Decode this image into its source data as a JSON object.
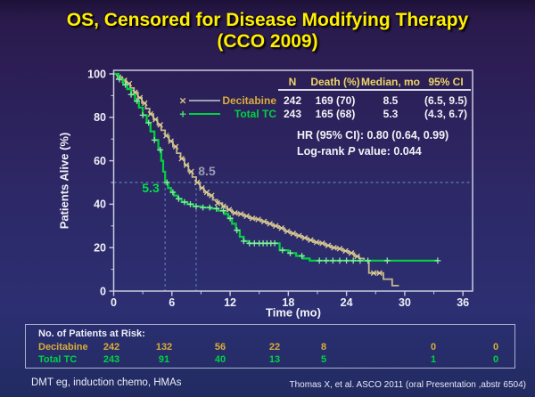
{
  "slide": {
    "title_line1": "OS, Censored for Disease Modifying Therapy",
    "title_line2": "(CCO 2009)",
    "footer_left": "DMT eg, induction chemo, HMAs",
    "footer_right": "Thomas X, et al. ASCO 2011 (oral Presentation ,abstr 6504)"
  },
  "axes": {
    "xlabel": "Time (mo)",
    "ylabel": "Patients Alive (%)"
  },
  "legend": {
    "decitabine_marker": "×",
    "total_tc_marker": "+",
    "decitabine_line_color": "#9aa2b2",
    "total_tc_line_color": "#00d23e"
  },
  "stats_panel": {
    "headers": {
      "n": "N",
      "death": "Death (%)",
      "median": "Median, mo",
      "ci": "95% CI"
    },
    "rows": [
      {
        "name": "Decitabine",
        "n": "242",
        "death": "169 (70)",
        "median": "8.5",
        "ci": "(6.5, 9.5)",
        "color": "#d9ad3a"
      },
      {
        "name": "Total TC",
        "n": "243",
        "death": "165 (68)",
        "median": "5.3",
        "ci": "(4.3, 6.7)",
        "color": "#00d244"
      }
    ],
    "hr_text": "HR (95% CI): 0.80 (0.64, 0.99)",
    "logrank_prefix": "Log-rank ",
    "logrank_italic": "P",
    "logrank_suffix": " value: 0.044"
  },
  "annotations": {
    "median_total_tc": "5.3",
    "median_decitabine": "8.5"
  },
  "risk_table": {
    "title": "No. of Patients at Risk:",
    "rows": [
      {
        "name": "Decitabine",
        "values": [
          "242",
          "132",
          "56",
          "22",
          "8",
          "0",
          "0"
        ]
      },
      {
        "name": "Total TC",
        "values": [
          "243",
          "91",
          "40",
          "13",
          "5",
          "1",
          "0"
        ]
      }
    ]
  },
  "chart_data": {
    "type": "line",
    "subtype": "kaplan-meier-step",
    "title": "OS, Censored for Disease Modifying Therapy (CCO 2009)",
    "xlabel": "Time (mo)",
    "ylabel": "Patients Alive (%)",
    "xlim": [
      0,
      36
    ],
    "ylim": [
      0,
      100
    ],
    "x_ticks": [
      0,
      6,
      12,
      18,
      24,
      30,
      36
    ],
    "x_minor_ticks": [
      3,
      9,
      15,
      21,
      27,
      33
    ],
    "y_ticks": [
      0,
      20,
      40,
      60,
      80,
      100
    ],
    "y_minor_ticks": [
      10,
      30,
      50,
      70,
      90
    ],
    "reference_line_percent": 50,
    "medians": {
      "Decitabine": 8.5,
      "Total TC": 5.3
    },
    "axis_color": "#c9cde0",
    "guide_color": "#6f93c8",
    "tick_label_color": "#f0f0f8",
    "series": [
      {
        "name": "Decitabine",
        "line_color": "#c3b98d",
        "marker": "x",
        "marker_color": "#ddcd92",
        "steps": [
          [
            0,
            100
          ],
          [
            0.4,
            98.5
          ],
          [
            0.9,
            97
          ],
          [
            1.3,
            95.5
          ],
          [
            1.7,
            93.5
          ],
          [
            2.1,
            91.5
          ],
          [
            2.5,
            89
          ],
          [
            2.9,
            86.5
          ],
          [
            3.3,
            84
          ],
          [
            3.7,
            81.5
          ],
          [
            4.1,
            79
          ],
          [
            4.5,
            76.5
          ],
          [
            4.9,
            74
          ],
          [
            5.3,
            71.5
          ],
          [
            5.7,
            69
          ],
          [
            6.1,
            66.5
          ],
          [
            6.5,
            63.5
          ],
          [
            6.9,
            61
          ],
          [
            7.3,
            58
          ],
          [
            7.7,
            55
          ],
          [
            8.1,
            52.5
          ],
          [
            8.5,
            50
          ],
          [
            8.9,
            47.5
          ],
          [
            9.3,
            45.5
          ],
          [
            9.7,
            44
          ],
          [
            10.2,
            42
          ],
          [
            10.7,
            40.5
          ],
          [
            11.2,
            39
          ],
          [
            11.7,
            37.5
          ],
          [
            12.2,
            36
          ],
          [
            12.8,
            35.5
          ],
          [
            13.4,
            34.5
          ],
          [
            14,
            33.5
          ],
          [
            14.6,
            33
          ],
          [
            15.2,
            32
          ],
          [
            15.8,
            31
          ],
          [
            16.4,
            30
          ],
          [
            17,
            29
          ],
          [
            17.6,
            27.5
          ],
          [
            18.2,
            26.5
          ],
          [
            18.8,
            25.5
          ],
          [
            19.4,
            24.5
          ],
          [
            20,
            23.5
          ],
          [
            20.6,
            22.5
          ],
          [
            21.2,
            22
          ],
          [
            21.8,
            21
          ],
          [
            22.4,
            20
          ],
          [
            23,
            19.5
          ],
          [
            23.6,
            18.5
          ],
          [
            24.2,
            17.5
          ],
          [
            24.8,
            16
          ],
          [
            25.3,
            15
          ],
          [
            25.8,
            14
          ],
          [
            26.3,
            8.3
          ],
          [
            27.8,
            5.5
          ],
          [
            28.7,
            2.5
          ],
          [
            29.4,
            2.5
          ]
        ],
        "censor_times": [
          0.5,
          1.1,
          1.6,
          2.2,
          2.7,
          3.2,
          3.8,
          4.3,
          4.8,
          5.4,
          5.9,
          6.4,
          7.0,
          7.5,
          8.0,
          8.6,
          9.1,
          9.6,
          10.1,
          10.7,
          11.3,
          11.9,
          12.5,
          13.1,
          13.7,
          14.3,
          14.9,
          15.5,
          16.1,
          16.7,
          17.3,
          17.9,
          18.5,
          19.1,
          19.7,
          20.3,
          20.9,
          21.5,
          22.1,
          22.7,
          23.3,
          23.9,
          24.5,
          25.1,
          26.8,
          27.4
        ]
      },
      {
        "name": "Total TC",
        "line_color": "#00d23e",
        "marker": "+",
        "marker_color": "#8ee8a4",
        "steps": [
          [
            0,
            100
          ],
          [
            0.5,
            97.5
          ],
          [
            1,
            95
          ],
          [
            1.4,
            93
          ],
          [
            1.8,
            90.5
          ],
          [
            2.2,
            87.5
          ],
          [
            2.6,
            84.5
          ],
          [
            3,
            81
          ],
          [
            3.4,
            77.5
          ],
          [
            3.8,
            73.5
          ],
          [
            4.2,
            69.5
          ],
          [
            4.6,
            65
          ],
          [
            4.9,
            60
          ],
          [
            5.1,
            55
          ],
          [
            5.3,
            50
          ],
          [
            5.6,
            47.5
          ],
          [
            5.9,
            45.5
          ],
          [
            6.2,
            44
          ],
          [
            6.6,
            42.5
          ],
          [
            7,
            41
          ],
          [
            7.6,
            40
          ],
          [
            8.2,
            39
          ],
          [
            9,
            38.5
          ],
          [
            10,
            38
          ],
          [
            10.8,
            37
          ],
          [
            11.4,
            35.5
          ],
          [
            11.8,
            33.5
          ],
          [
            12.2,
            31
          ],
          [
            12.6,
            28
          ],
          [
            13,
            25
          ],
          [
            13.4,
            23
          ],
          [
            13.9,
            22
          ],
          [
            17.1,
            18.8
          ],
          [
            18,
            17.5
          ],
          [
            18.8,
            16.2
          ],
          [
            19.5,
            15
          ],
          [
            20.2,
            14
          ],
          [
            33.4,
            14
          ]
        ],
        "censor_times": [
          0.6,
          1.2,
          1.8,
          2.4,
          3.0,
          3.6,
          4.2,
          4.8,
          5.5,
          6.1,
          6.7,
          7.3,
          7.9,
          8.5,
          9.2,
          9.9,
          10.6,
          11.3,
          12.0,
          12.7,
          13.4,
          14.0,
          14.5,
          15.0,
          15.4,
          15.8,
          16.2,
          16.6,
          17.4,
          18.2,
          19.4,
          21.2,
          21.9,
          22.6,
          23.3,
          24.0,
          24.7,
          25.4,
          26.2,
          28.2,
          33.4
        ]
      }
    ]
  }
}
